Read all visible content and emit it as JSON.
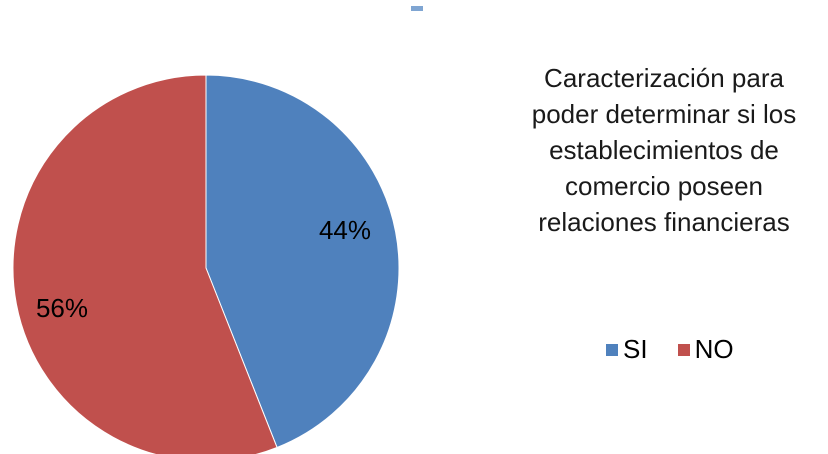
{
  "chart_data": {
    "type": "pie",
    "title": "Caracterización para poder determinar si los establecimientos de comercio poseen relaciones financieras",
    "title_lines": [
      "Caracterización para",
      "poder determinar si los",
      "establecimientos de",
      "comercio poseen",
      "relaciones financieras"
    ],
    "categories": [
      "SI",
      "NO"
    ],
    "values": [
      44,
      56
    ],
    "labels": [
      "44%",
      "56%"
    ],
    "colors": [
      "#4f81bd",
      "#c0504d"
    ],
    "legend_position": "right"
  }
}
